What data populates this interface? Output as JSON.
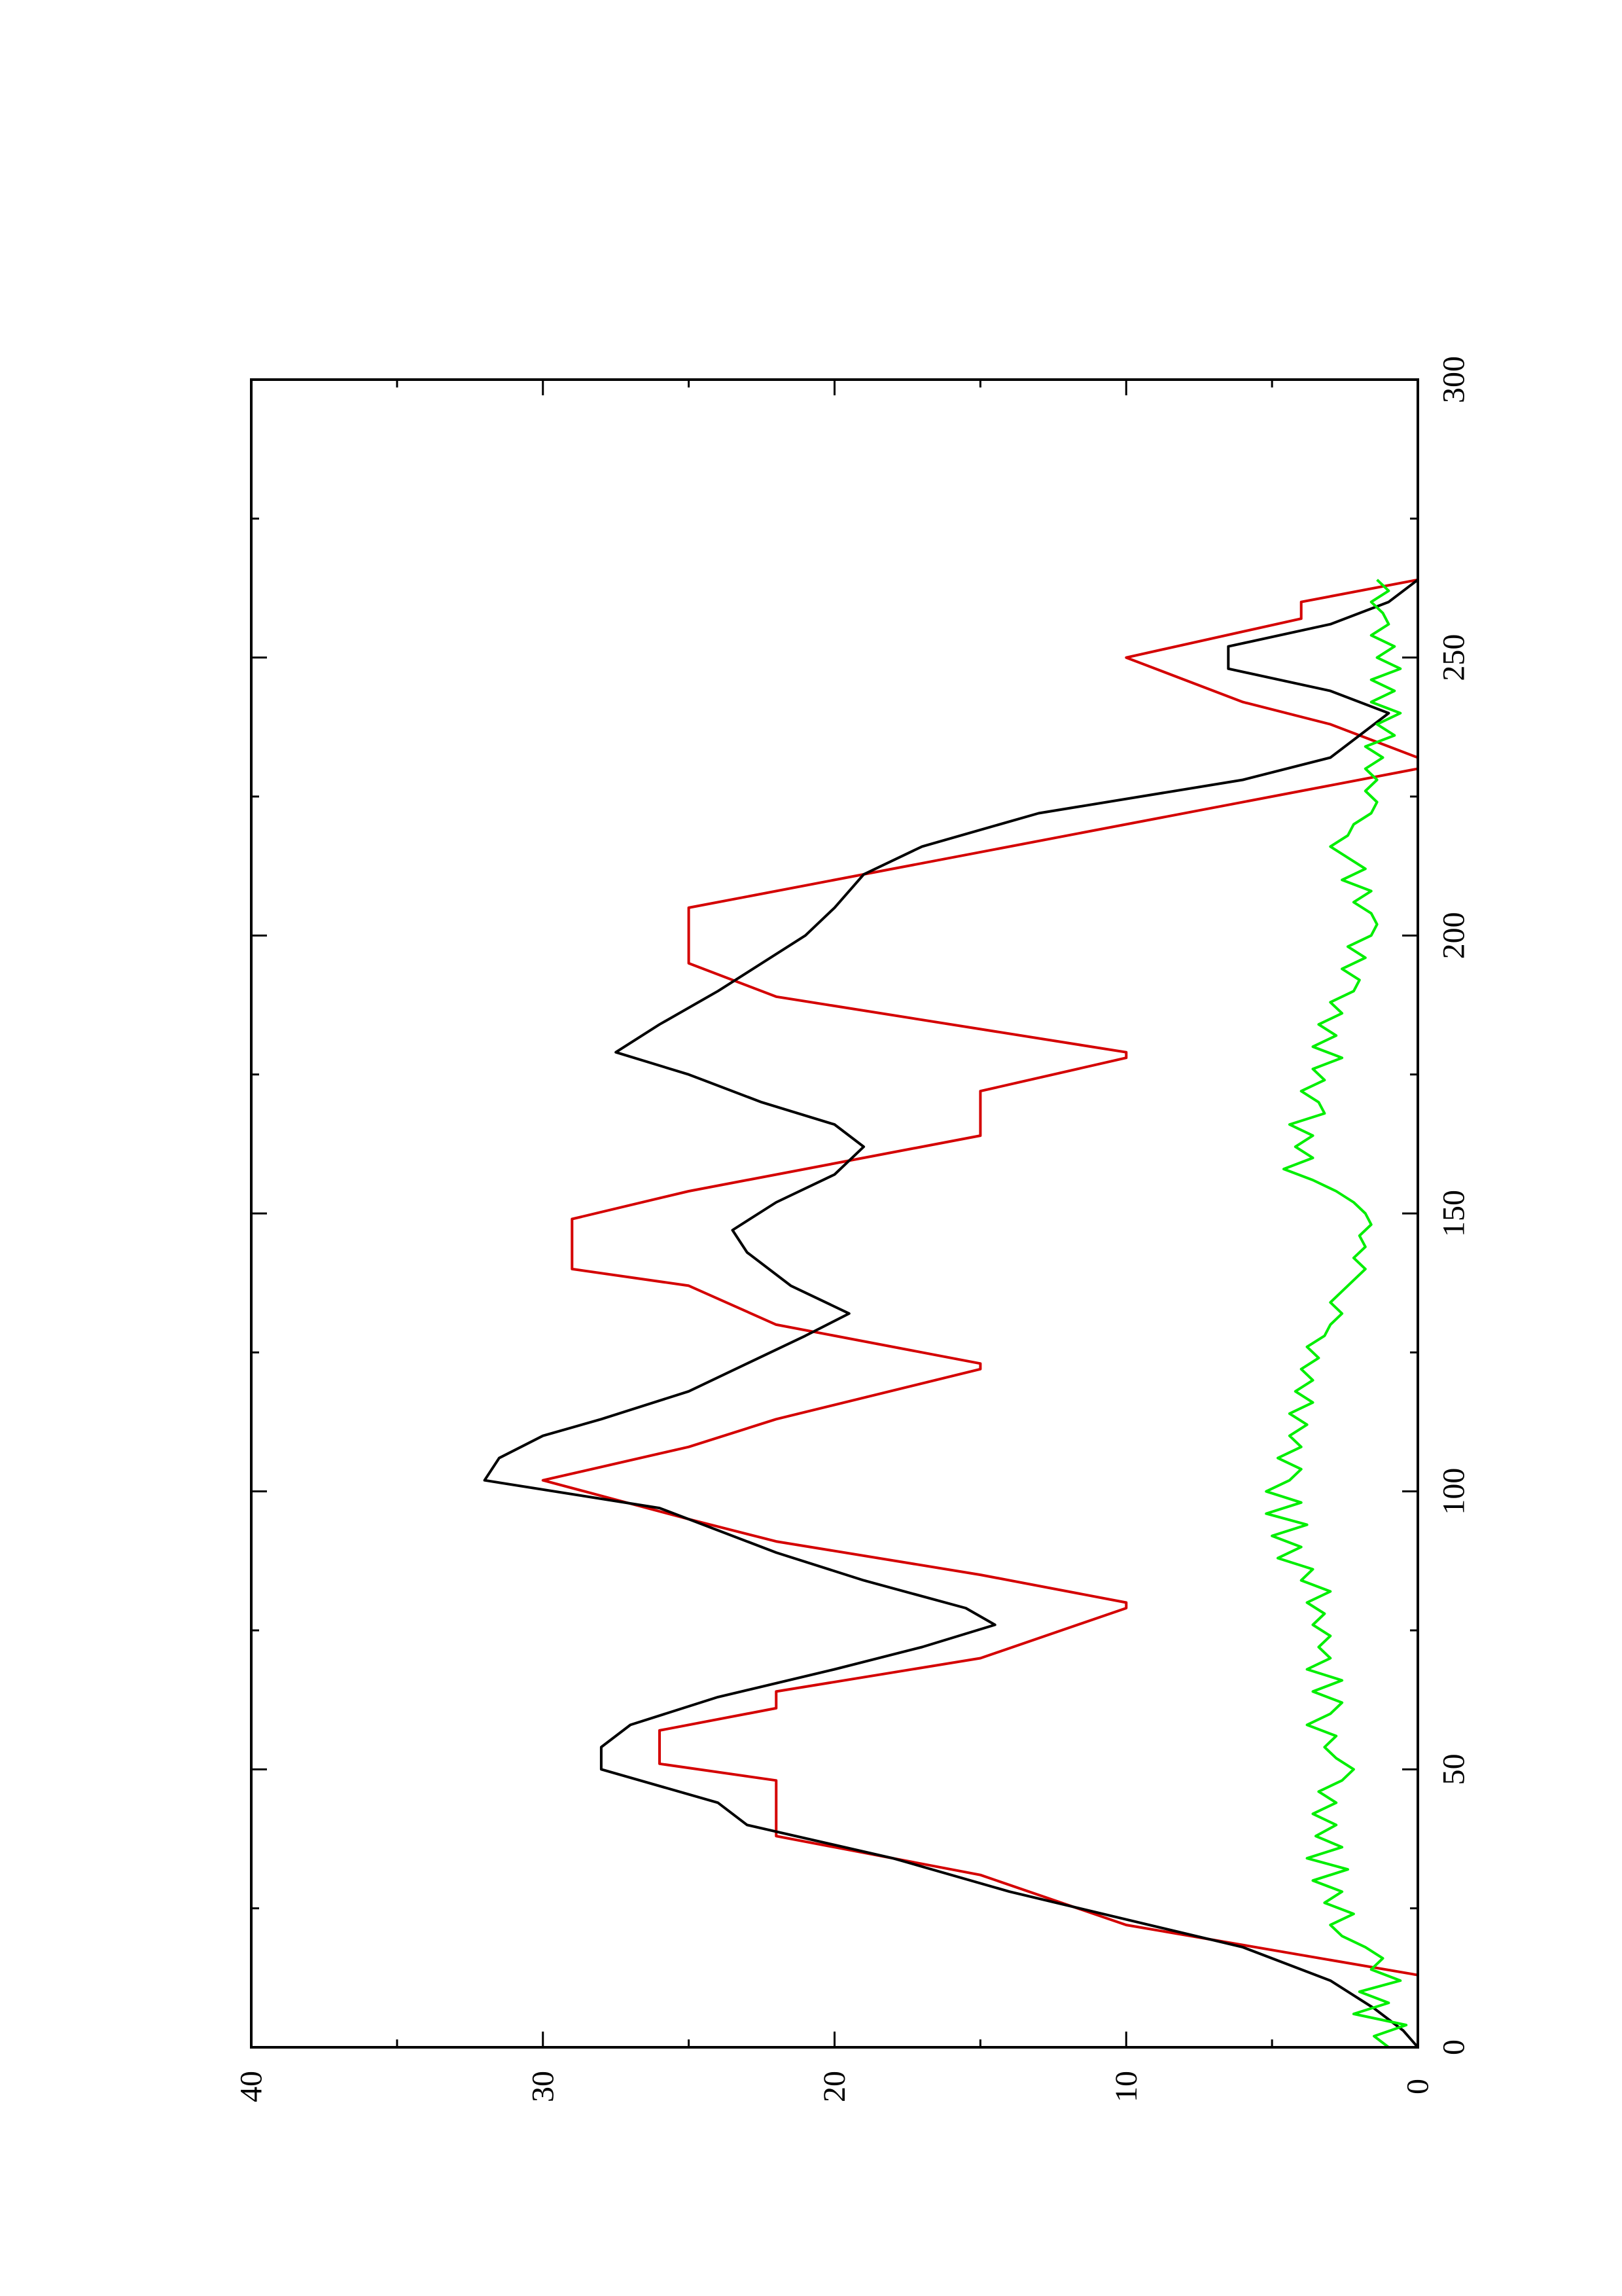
{
  "chart_data": {
    "type": "line",
    "orientation": "rotated-90-ccw",
    "title": "",
    "xlabel": "",
    "ylabel": "",
    "xlim": [
      0,
      300
    ],
    "ylim": [
      0,
      40
    ],
    "x_ticks": [
      "0",
      "50",
      "100",
      "150",
      "200",
      "250",
      "300"
    ],
    "y_ticks": [
      "0",
      "10",
      "20",
      "30",
      "40"
    ],
    "grid": false,
    "legend": "none",
    "series": [
      {
        "color": "#d40000",
        "style": "stepped-ramps",
        "points": [
          [
            0,
            0
          ],
          [
            13,
            0
          ],
          [
            22,
            10
          ],
          [
            31,
            15
          ],
          [
            38,
            22
          ],
          [
            48,
            22
          ],
          [
            51,
            26
          ],
          [
            57,
            26
          ],
          [
            61,
            22
          ],
          [
            64,
            22
          ],
          [
            70,
            15
          ],
          [
            79,
            10
          ],
          [
            80,
            10
          ],
          [
            85,
            15
          ],
          [
            91,
            22
          ],
          [
            95,
            25
          ],
          [
            102,
            30
          ],
          [
            108,
            25
          ],
          [
            113,
            22
          ],
          [
            122,
            15
          ],
          [
            123,
            15
          ],
          [
            130,
            22
          ],
          [
            137,
            25
          ],
          [
            140,
            29
          ],
          [
            149,
            29
          ],
          [
            154,
            25
          ],
          [
            164,
            15
          ],
          [
            172,
            15
          ],
          [
            178,
            10
          ],
          [
            179,
            10
          ],
          [
            189,
            22
          ],
          [
            195,
            25
          ],
          [
            205,
            25
          ],
          [
            212,
            18
          ],
          [
            230,
            0
          ],
          [
            232,
            0
          ],
          [
            238,
            3
          ],
          [
            242,
            6
          ],
          [
            250,
            10
          ],
          [
            257,
            4
          ],
          [
            260,
            4
          ],
          [
            264,
            0
          ]
        ]
      },
      {
        "color": "#000000",
        "style": "smooth",
        "points": [
          [
            0,
            0
          ],
          [
            3,
            0.5
          ],
          [
            7,
            1.5
          ],
          [
            12,
            3
          ],
          [
            18,
            6
          ],
          [
            23,
            10
          ],
          [
            28,
            14
          ],
          [
            34,
            18
          ],
          [
            40,
            23
          ],
          [
            44,
            24
          ],
          [
            50,
            28
          ],
          [
            54,
            28
          ],
          [
            58,
            27
          ],
          [
            63,
            24
          ],
          [
            68,
            20
          ],
          [
            72,
            17
          ],
          [
            76,
            14.5
          ],
          [
            79,
            15.5
          ],
          [
            84,
            19
          ],
          [
            89,
            22
          ],
          [
            93,
            24
          ],
          [
            97,
            26
          ],
          [
            102,
            32
          ],
          [
            106,
            31.5
          ],
          [
            110,
            30
          ],
          [
            113,
            28
          ],
          [
            118,
            25
          ],
          [
            123,
            23
          ],
          [
            128,
            21
          ],
          [
            132,
            19.5
          ],
          [
            137,
            21.5
          ],
          [
            143,
            23
          ],
          [
            147,
            23.5
          ],
          [
            152,
            22
          ],
          [
            157,
            20
          ],
          [
            162,
            19
          ],
          [
            166,
            20
          ],
          [
            170,
            22.5
          ],
          [
            175,
            25
          ],
          [
            179,
            27.5
          ],
          [
            184,
            26
          ],
          [
            190,
            24
          ],
          [
            195,
            22.5
          ],
          [
            200,
            21
          ],
          [
            205,
            20
          ],
          [
            211,
            19
          ],
          [
            216,
            17
          ],
          [
            222,
            13
          ],
          [
            228,
            6
          ],
          [
            232,
            3
          ],
          [
            236,
            2
          ],
          [
            240,
            1
          ],
          [
            244,
            3
          ],
          [
            248,
            6.5
          ],
          [
            252,
            6.5
          ],
          [
            256,
            3
          ],
          [
            260,
            1
          ],
          [
            264,
            0
          ]
        ]
      },
      {
        "color": "#00ee00",
        "style": "noisy",
        "points": [
          [
            0,
            1
          ],
          [
            2,
            1.5
          ],
          [
            4,
            0.4
          ],
          [
            6,
            2.2
          ],
          [
            8,
            1
          ],
          [
            10,
            2
          ],
          [
            12,
            0.6
          ],
          [
            14,
            1.6
          ],
          [
            16,
            1.2
          ],
          [
            18,
            1.8
          ],
          [
            20,
            2.6
          ],
          [
            22,
            3
          ],
          [
            24,
            2.2
          ],
          [
            26,
            3.2
          ],
          [
            28,
            2.6
          ],
          [
            30,
            3.6
          ],
          [
            32,
            2.4
          ],
          [
            34,
            3.8
          ],
          [
            36,
            2.6
          ],
          [
            38,
            3.5
          ],
          [
            40,
            2.8
          ],
          [
            42,
            3.6
          ],
          [
            44,
            2.8
          ],
          [
            46,
            3.4
          ],
          [
            48,
            2.6
          ],
          [
            50,
            2.2
          ],
          [
            52,
            2.8
          ],
          [
            54,
            3.2
          ],
          [
            56,
            2.8
          ],
          [
            58,
            3.8
          ],
          [
            60,
            3
          ],
          [
            62,
            2.6
          ],
          [
            64,
            3.6
          ],
          [
            66,
            2.6
          ],
          [
            68,
            3.8
          ],
          [
            70,
            3
          ],
          [
            72,
            3.4
          ],
          [
            74,
            3
          ],
          [
            76,
            3.6
          ],
          [
            78,
            3.2
          ],
          [
            80,
            3.8
          ],
          [
            82,
            3
          ],
          [
            84,
            4
          ],
          [
            86,
            3.6
          ],
          [
            88,
            4.8
          ],
          [
            90,
            4
          ],
          [
            92,
            5
          ],
          [
            94,
            3.8
          ],
          [
            96,
            5.2
          ],
          [
            98,
            4
          ],
          [
            100,
            5.2
          ],
          [
            102,
            4.4
          ],
          [
            104,
            4
          ],
          [
            106,
            4.8
          ],
          [
            108,
            4
          ],
          [
            110,
            4.4
          ],
          [
            112,
            3.8
          ],
          [
            114,
            4.4
          ],
          [
            116,
            3.6
          ],
          [
            118,
            4.2
          ],
          [
            120,
            3.6
          ],
          [
            122,
            4
          ],
          [
            124,
            3.4
          ],
          [
            126,
            3.8
          ],
          [
            128,
            3.2
          ],
          [
            130,
            3
          ],
          [
            132,
            2.6
          ],
          [
            134,
            3
          ],
          [
            136,
            2.6
          ],
          [
            138,
            2.2
          ],
          [
            140,
            1.8
          ],
          [
            142,
            2.2
          ],
          [
            144,
            1.8
          ],
          [
            146,
            2
          ],
          [
            148,
            1.6
          ],
          [
            150,
            1.8
          ],
          [
            152,
            2.2
          ],
          [
            154,
            2.8
          ],
          [
            156,
            3.6
          ],
          [
            158,
            4.6
          ],
          [
            160,
            3.6
          ],
          [
            162,
            4.2
          ],
          [
            164,
            3.6
          ],
          [
            166,
            4.4
          ],
          [
            168,
            3.2
          ],
          [
            170,
            3.4
          ],
          [
            172,
            4
          ],
          [
            174,
            3.2
          ],
          [
            176,
            3.6
          ],
          [
            178,
            2.6
          ],
          [
            180,
            3.6
          ],
          [
            182,
            2.8
          ],
          [
            184,
            3.4
          ],
          [
            186,
            2.6
          ],
          [
            188,
            3
          ],
          [
            190,
            2.2
          ],
          [
            192,
            2
          ],
          [
            194,
            2.6
          ],
          [
            196,
            1.8
          ],
          [
            198,
            2.4
          ],
          [
            200,
            1.6
          ],
          [
            202,
            1.4
          ],
          [
            204,
            1.6
          ],
          [
            206,
            2.2
          ],
          [
            208,
            1.6
          ],
          [
            210,
            2.6
          ],
          [
            212,
            1.8
          ],
          [
            214,
            2.4
          ],
          [
            216,
            3
          ],
          [
            218,
            2.4
          ],
          [
            220,
            2.2
          ],
          [
            222,
            1.6
          ],
          [
            224,
            1.4
          ],
          [
            226,
            1.8
          ],
          [
            228,
            1.4
          ],
          [
            230,
            1.8
          ],
          [
            232,
            1.2
          ],
          [
            234,
            1.8
          ],
          [
            236,
            0.8
          ],
          [
            238,
            1.4
          ],
          [
            240,
            0.6
          ],
          [
            242,
            1.6
          ],
          [
            244,
            0.8
          ],
          [
            246,
            1.6
          ],
          [
            248,
            0.6
          ],
          [
            250,
            1.4
          ],
          [
            252,
            0.8
          ],
          [
            254,
            1.6
          ],
          [
            256,
            1
          ],
          [
            258,
            1.2
          ],
          [
            260,
            1.6
          ],
          [
            262,
            1
          ],
          [
            264,
            1.4
          ]
        ]
      }
    ]
  }
}
